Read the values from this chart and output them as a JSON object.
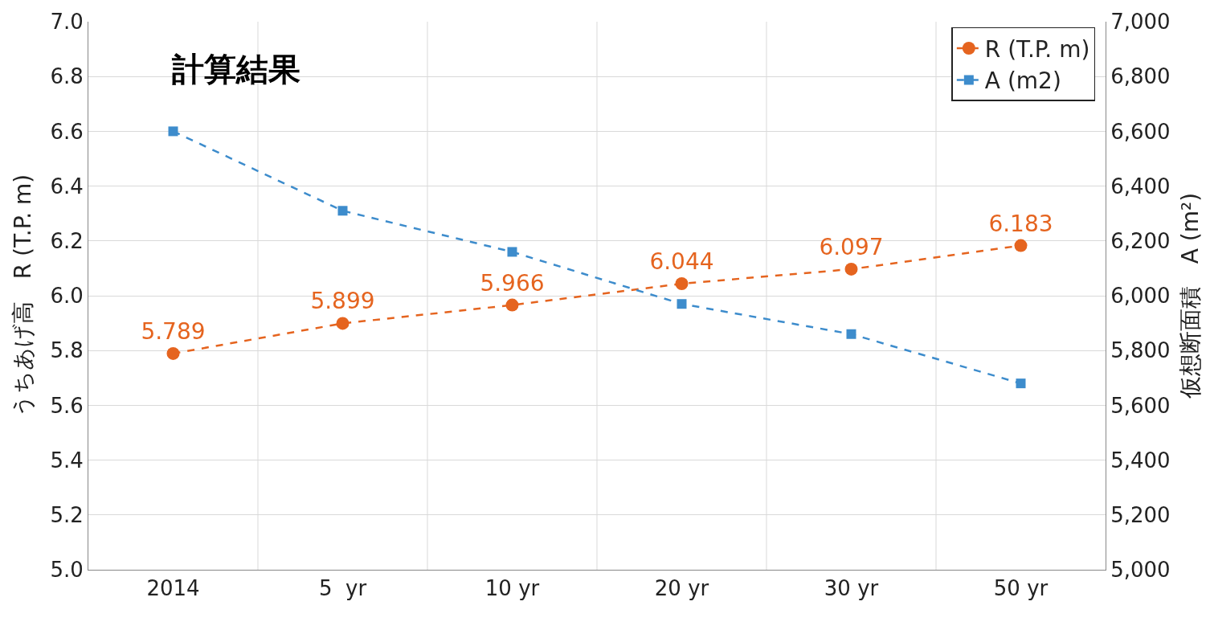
{
  "chart_data": {
    "type": "line",
    "title": "計算結果",
    "ylabel": "うちあげ高　R (T.P. m)",
    "y2label": "仮想断面積　A (m²)",
    "categories": [
      "2014",
      "5  yr",
      "10 yr",
      "20 yr",
      "30 yr",
      "50 yr"
    ],
    "series": [
      {
        "name": "R (T.P. m)",
        "color": "#e5641f",
        "marker": "circle",
        "values": [
          5.789,
          5.899,
          5.966,
          6.044,
          6.097,
          6.183
        ],
        "data_labels": true
      },
      {
        "name": "A (m2)",
        "color": "#3d8ccc",
        "marker": "square",
        "axis": "y2",
        "values": [
          6600,
          6310,
          6160,
          5970,
          5860,
          5680
        ]
      }
    ],
    "ylim": [
      5.0,
      7.0
    ],
    "yticks": [
      {
        "value": 5.0,
        "label": "5.0"
      },
      5.2,
      5.4,
      5.6,
      5.8,
      {
        "value": 6.0,
        "label": "6.0"
      },
      6.2,
      6.4,
      6.6,
      6.8,
      {
        "value": 7.0,
        "label": "7.0"
      }
    ],
    "y2lim": [
      5000,
      7000
    ],
    "y2ticks": [
      {
        "value": 5000,
        "label": "5,000"
      },
      {
        "value": 5200,
        "label": "5,200"
      },
      {
        "value": 5400,
        "label": "5,400"
      },
      {
        "value": 5600,
        "label": "5,600"
      },
      {
        "value": 5800,
        "label": "5,800"
      },
      {
        "value": 6000,
        "label": "6,000"
      },
      {
        "value": 6200,
        "label": "6,200"
      },
      {
        "value": 6400,
        "label": "6,400"
      },
      {
        "value": 6600,
        "label": "6,600"
      },
      {
        "value": 6800,
        "label": "6,800"
      },
      {
        "value": 7000,
        "label": "7,000"
      }
    ],
    "grid": true,
    "legend": "top right",
    "line_style": "dashed"
  }
}
